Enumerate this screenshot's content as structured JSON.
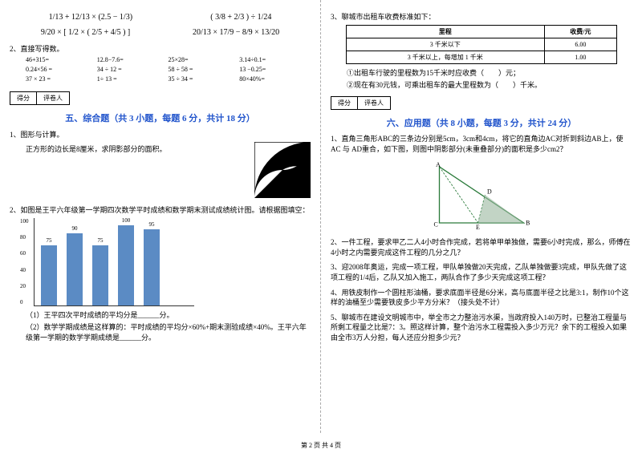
{
  "left": {
    "formula1a": "1/13 + 12/13 × (2.5 − 1/3)",
    "formula1b": "( 3/8 + 2/3 ) ÷ 1/24",
    "formula2a": "9/20 × [ 1/2 × ( 2/5 + 4/5 ) ]",
    "formula2b": "20/13 × 17/9 − 8/9 × 13/20",
    "q2_title": "2、直接写得数。",
    "calc": [
      "46+315=",
      "12.8−7.6=",
      "25×28=",
      "3.14÷0.1=",
      "0.24×56 =",
      "34 ÷ 12 =",
      "58 ÷ 58 =",
      "13 −0.25=",
      "37 × 23 =",
      "1÷ 13 =",
      "35 ÷ 34 =",
      "80×40%="
    ],
    "score_label1": "得分",
    "score_label2": "评卷人",
    "section5": "五、综合题（共 3 小题，每题 6 分，共计 18 分）",
    "q5_1": "1、图形与计算。",
    "q5_1_sub": "正方形的边长是8厘米，求阴影部分的面积。",
    "q5_2": "2、如图是王平六年级第一学期四次数学平时成绩和数学期末测试成绩统计图。请根据图填空：",
    "chart": {
      "y_ticks": [
        "0",
        "20",
        "40",
        "60",
        "80",
        "100"
      ],
      "bars": [
        {
          "label": "75",
          "h": 75
        },
        {
          "label": "90",
          "h": 90
        },
        {
          "label": "75",
          "h": 75
        },
        {
          "label": "100",
          "h": 100
        },
        {
          "label": "95",
          "h": 95
        }
      ],
      "bg": "#ffffff",
      "bar_color": "#5b8bc4"
    },
    "q5_2_sub1": "（1）王平四次平时成绩的平均分是______分。",
    "q5_2_sub2": "（2）数学学期成绩是这样算的：平时成绩的平均分×60%+期末测验成绩×40%。王平六年级第一学期的数学学期成绩是______分。"
  },
  "right": {
    "q3_title": "3、聊城市出租车收费标准如下：",
    "table": {
      "headers": [
        "里程",
        "收费/元"
      ],
      "rows": [
        [
          "3 千米以下",
          "6.00"
        ],
        [
          "3 千米以上，每增加 1 千米",
          "1.00"
        ]
      ]
    },
    "q3_sub1": "①出租车行驶的里程数为15千米时应收费（　　）元；",
    "q3_sub2": "②现在有30元钱，可乘出租车的最大里程数为（　　）千米。",
    "score_label1": "得分",
    "score_label2": "评卷人",
    "section6": "六、应用题（共 8 小题，每题 3 分，共计 24 分）",
    "q6_1": "1、直角三角形ABC的三条边分别是5cm，3cm和4cm，将它的直角边AC对折到斜边AB上，使AC 与 AD重合，如下图，则图中阴影部分(未重叠部分)的面积是多少cm2？",
    "q6_2": "2、一件工程，要求甲乙二人4小时合作完成，若将单甲单独做，需要6小时完成，那么，师傅在4小时之内需要完成这件工程的几分之几？",
    "q6_3": "3、迎2008年奥运，完成一项工程，甲队单独做20天完成，乙队单独做要3完成，甲队先做了这项工程的1/4后，乙队又加入施工，两队合作了多少天完成这项工程？",
    "q6_4": "4、用铁皮制作一个圆柱形油桶，要求底面半径是6分米，高与底面半径之比是3:1，制作10个这样的油桶至少需要铁皮多少平方分米？（接头处不计）",
    "q6_5": "5、聊城市在建设文明城市中，举全市之力整治污水渠，当政府投入140万时，已整治工程量与所剩工程量之比是7：3。照这样计算，整个治污水工程需投入多少万元？余下的工程投入如果由全市3万人分担，每人还应分担多少元？",
    "triangle_labels": {
      "A": "A",
      "B": "B",
      "C": "C",
      "D": "D",
      "E": "E"
    }
  },
  "footer": "第 2 页 共 4 页"
}
